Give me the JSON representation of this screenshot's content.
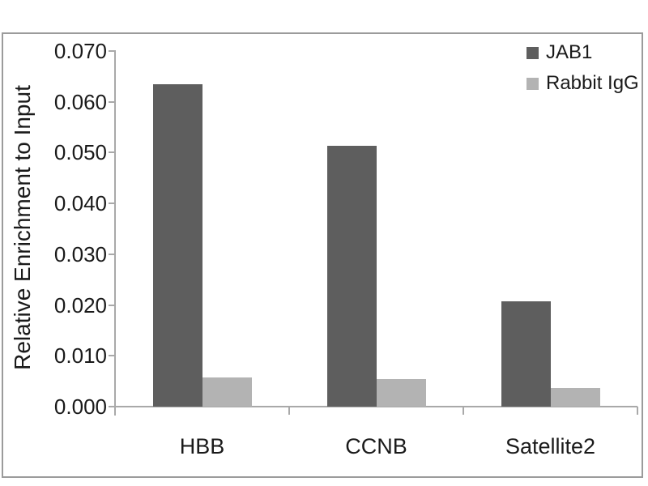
{
  "chart_data": {
    "type": "bar",
    "title": "",
    "categories": [
      "HBB",
      "CCNB",
      "Satellite2"
    ],
    "series": [
      {
        "name": "JAB1",
        "color": "#5e5e5e",
        "values": [
          0.0634,
          0.0514,
          0.0208
        ]
      },
      {
        "name": "Rabbit IgG",
        "color": "#b3b3b3",
        "values": [
          0.0058,
          0.0055,
          0.0036
        ]
      }
    ],
    "xlabel": "",
    "ylabel": "Relative Enrichment to Input",
    "ylim": [
      0,
      0.07
    ],
    "ytick_step": 0.01,
    "yticks": [
      "0.000",
      "0.010",
      "0.020",
      "0.030",
      "0.040",
      "0.050",
      "0.060",
      "0.070"
    ],
    "legend_position": "top-right",
    "grid": false
  },
  "appearance": {
    "background": "#ffffff",
    "frame_border_color": "#9b9b9b",
    "axis_color": "#a9a9a9",
    "text_color": "#1a1a1a"
  }
}
